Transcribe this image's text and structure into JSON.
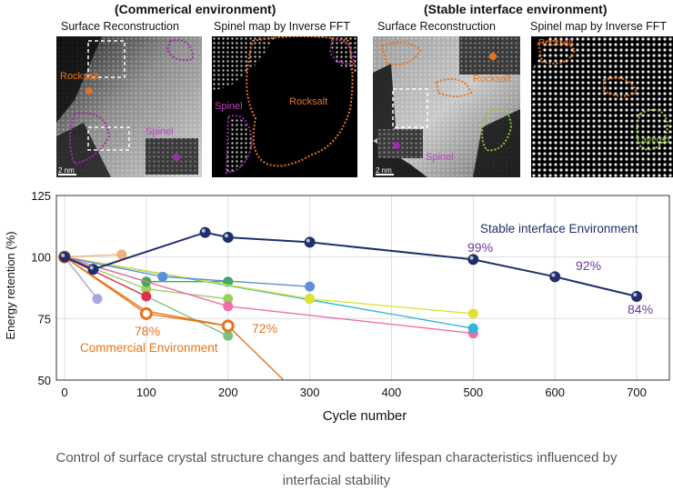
{
  "panels": {
    "commercial_header": "(Commerical environment)",
    "stable_header": "(Stable interface environment)",
    "titles": {
      "surface": "Surface Reconstruction",
      "spinel_map": "Spinel map by Inverse FFT"
    },
    "labels": {
      "scale": "2 nm",
      "rocksalt": "Rocksalt",
      "spinel": "Spinel",
      "layered": "Layered"
    }
  },
  "colors": {
    "stable": "#1e2f6b",
    "commercial": "#e8731b",
    "spinel": "#a02aa8",
    "layered": "#8bc53f",
    "stable_text": "#6a3aa0"
  },
  "chart_data": {
    "type": "line",
    "xlabel": "Cycle number",
    "ylabel": "Energy retention (%)",
    "xlim": [
      -10,
      740
    ],
    "ylim": [
      50,
      125
    ],
    "xticks": [
      0,
      100,
      200,
      300,
      400,
      500,
      600,
      700
    ],
    "yticks": [
      50,
      75,
      100,
      125
    ],
    "series": [
      {
        "name": "Stable interface Environment",
        "color": "#1e2f6b",
        "style": "dark",
        "x": [
          0,
          35,
          172,
          200,
          300,
          500,
          600,
          700
        ],
        "y": [
          100,
          95,
          110,
          108,
          106,
          99,
          92,
          84
        ]
      },
      {
        "name": "Commercial Environment",
        "color": "#e8731b",
        "style": "orange",
        "x": [
          0,
          100,
          200
        ],
        "y": [
          100,
          77,
          72
        ]
      },
      {
        "name": "Commercial Environment (failing)",
        "color": "#e8731b",
        "style": "orange-line",
        "x": [
          0,
          100,
          200,
          268
        ],
        "y": [
          100,
          78,
          72,
          50
        ]
      },
      {
        "name": "light orange",
        "color": "#f0b07a",
        "x": [
          0,
          70
        ],
        "y": [
          100,
          101
        ]
      },
      {
        "name": "lavender",
        "color": "#a7a7dd",
        "x": [
          0,
          40
        ],
        "y": [
          100,
          83
        ]
      },
      {
        "name": "blue",
        "color": "#5b8fd6",
        "x": [
          0,
          120,
          300
        ],
        "y": [
          100,
          92,
          88
        ]
      },
      {
        "name": "yellow",
        "color": "#dde330",
        "x": [
          0,
          300,
          500
        ],
        "y": [
          100,
          83,
          77
        ]
      },
      {
        "name": "cyan",
        "color": "#2fb5d6",
        "x": [
          0,
          500
        ],
        "y": [
          100,
          71
        ]
      },
      {
        "name": "pink",
        "color": "#ef6ea8",
        "x": [
          0,
          200,
          500
        ],
        "y": [
          100,
          80,
          69
        ]
      },
      {
        "name": "red",
        "color": "#dd3350",
        "x": [
          0,
          100
        ],
        "y": [
          100,
          84
        ]
      },
      {
        "name": "green",
        "color": "#3dab55",
        "x": [
          0,
          100,
          200
        ],
        "y": [
          100,
          90,
          90
        ]
      },
      {
        "name": "light green",
        "color": "#9bd05d",
        "x": [
          0,
          100,
          200
        ],
        "y": [
          100,
          87,
          83
        ]
      },
      {
        "name": "teal green",
        "color": "#7fbf7f",
        "x": [
          0,
          200
        ],
        "y": [
          100,
          68
        ]
      },
      {
        "name": "tan",
        "color": "#d6a84a",
        "x": [
          0,
          300
        ],
        "y": [
          100,
          83
        ]
      }
    ],
    "annotations": {
      "stable_label": "Stable interface Environment",
      "commercial_label": "Commercial Environment",
      "p99": "99%",
      "p92": "92%",
      "p84": "84%",
      "p78": "78%",
      "p72": "72%"
    }
  },
  "caption_line1": "Control of surface crystal structure changes and battery lifespan characteristics influenced by",
  "caption_line2": "interfacial stability"
}
